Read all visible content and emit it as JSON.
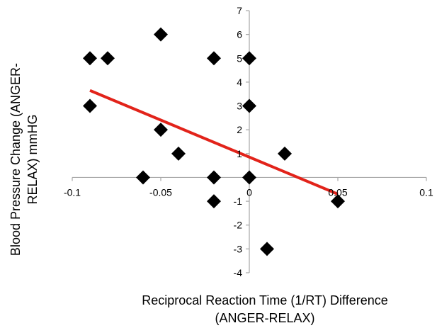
{
  "chart_data": {
    "type": "scatter",
    "title": "",
    "xlabel_lines": [
      "Reciprocal Reaction Time (1/RT) Difference",
      "(ANGER-RELAX)"
    ],
    "ylabel_lines": [
      "Blood Pressure Change (ANGER-",
      "RELAX) mmHG"
    ],
    "xlim": [
      -0.1,
      0.1
    ],
    "ylim": [
      -4,
      7
    ],
    "x_ticks": [
      -0.1,
      -0.05,
      0,
      0.05,
      0.1
    ],
    "x_tick_labels": [
      "-0.1",
      "-0.05",
      "0",
      "0.05",
      "0.1"
    ],
    "y_ticks": [
      -4,
      -3,
      -2,
      -1,
      1,
      2,
      3,
      4,
      5,
      6,
      7
    ],
    "y_tick_labels": [
      "-4",
      "-3",
      "-2",
      "-1",
      "1",
      "2",
      "3",
      "4",
      "5",
      "6",
      "7"
    ],
    "grid": false,
    "legend": "none",
    "points": [
      {
        "x": -0.09,
        "y": 5
      },
      {
        "x": -0.08,
        "y": 5
      },
      {
        "x": -0.05,
        "y": 6
      },
      {
        "x": -0.09,
        "y": 3
      },
      {
        "x": -0.05,
        "y": 2
      },
      {
        "x": -0.04,
        "y": 1
      },
      {
        "x": -0.06,
        "y": 0
      },
      {
        "x": -0.02,
        "y": 5
      },
      {
        "x": 0,
        "y": 5
      },
      {
        "x": 0,
        "y": 3
      },
      {
        "x": -0.02,
        "y": 0
      },
      {
        "x": 0,
        "y": 0
      },
      {
        "x": -0.02,
        "y": -1
      },
      {
        "x": 0.02,
        "y": 1
      },
      {
        "x": 0.01,
        "y": -3
      },
      {
        "x": 0.05,
        "y": -1
      }
    ],
    "trendline": {
      "type": "linear",
      "x": [
        -0.09,
        0.05
      ],
      "y": [
        3.65,
        -0.7
      ]
    },
    "colors": {
      "marker": "#000000",
      "trendline": "#e2231a",
      "axis": "#a6a6a6"
    }
  }
}
